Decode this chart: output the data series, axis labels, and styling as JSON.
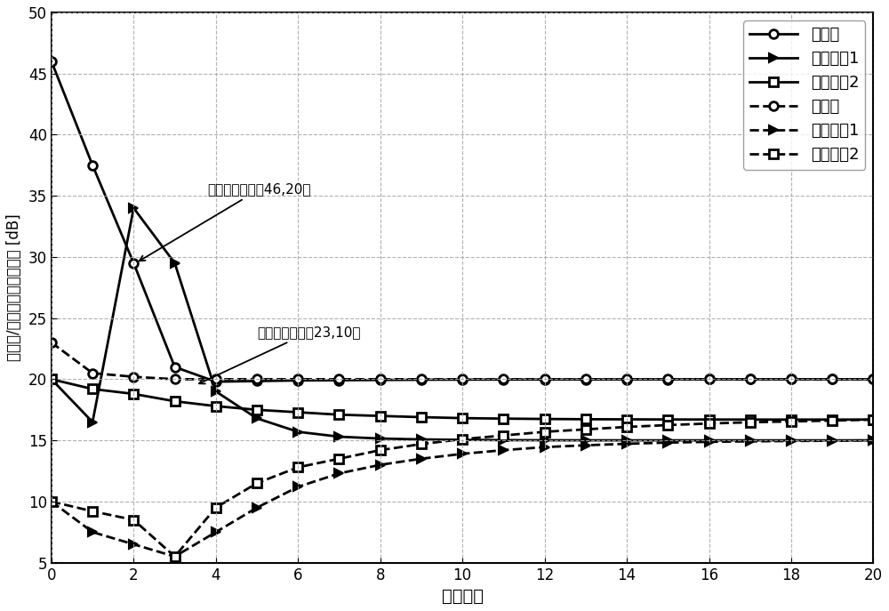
{
  "title": "",
  "xlabel": "迭代次数",
  "ylabel": "宏基站/家庭基站的发射功率 [dB]",
  "xlim": [
    0,
    20
  ],
  "ylim": [
    5,
    50
  ],
  "xticks": [
    0,
    2,
    4,
    6,
    8,
    10,
    12,
    14,
    16,
    18,
    20
  ],
  "yticks": [
    5,
    10,
    15,
    20,
    25,
    30,
    35,
    40,
    45,
    50
  ],
  "annotation1": "初始发射功率（46,20）",
  "annotation2": "初始发射功率（23,10）",
  "legend_labels_solid": [
    "宏基站",
    "家庭基站1",
    "家庭基站2"
  ],
  "legend_labels_dashed": [
    "宏基站",
    "家庭基站1",
    "家庭基站2"
  ],
  "solid_macro": [
    46,
    37.5,
    29.5,
    21.0,
    19.8,
    19.85,
    19.9,
    19.92,
    19.94,
    19.96,
    19.97,
    19.975,
    19.98,
    19.985,
    19.99,
    19.993,
    19.995,
    19.997,
    19.998,
    19.999,
    20.0
  ],
  "solid_femto1": [
    20,
    16.5,
    34.0,
    29.5,
    19.0,
    16.8,
    15.7,
    15.3,
    15.15,
    15.08,
    15.04,
    15.02,
    15.01,
    15.005,
    15.003,
    15.001,
    15.0,
    15.0,
    15.0,
    15.0,
    15.0
  ],
  "solid_femto2": [
    20,
    19.2,
    18.8,
    18.2,
    17.8,
    17.5,
    17.3,
    17.1,
    17.0,
    16.9,
    16.82,
    16.78,
    16.75,
    16.73,
    16.72,
    16.71,
    16.705,
    16.7,
    16.7,
    16.7,
    16.7
  ],
  "dashed_macro": [
    23,
    20.5,
    20.2,
    20.0,
    20.0,
    20.0,
    20.0,
    20.0,
    20.0,
    20.0,
    20.0,
    20.0,
    20.0,
    20.0,
    20.0,
    20.0,
    20.0,
    20.0,
    20.0,
    20.0,
    20.0
  ],
  "dashed_femto1": [
    10,
    7.5,
    6.5,
    5.5,
    7.5,
    9.5,
    11.2,
    12.3,
    13.0,
    13.5,
    13.9,
    14.2,
    14.45,
    14.6,
    14.72,
    14.82,
    14.88,
    14.92,
    14.95,
    14.97,
    15.0
  ],
  "dashed_femto2": [
    10,
    9.2,
    8.5,
    5.5,
    9.5,
    11.5,
    12.8,
    13.5,
    14.2,
    14.7,
    15.1,
    15.4,
    15.7,
    15.9,
    16.1,
    16.25,
    16.38,
    16.48,
    16.55,
    16.62,
    16.7
  ],
  "line_color": "#000000",
  "grid_color": "#aaaaaa",
  "bg_color": "#ffffff",
  "linewidth": 2.0,
  "markersize": 7,
  "markevery": 2
}
